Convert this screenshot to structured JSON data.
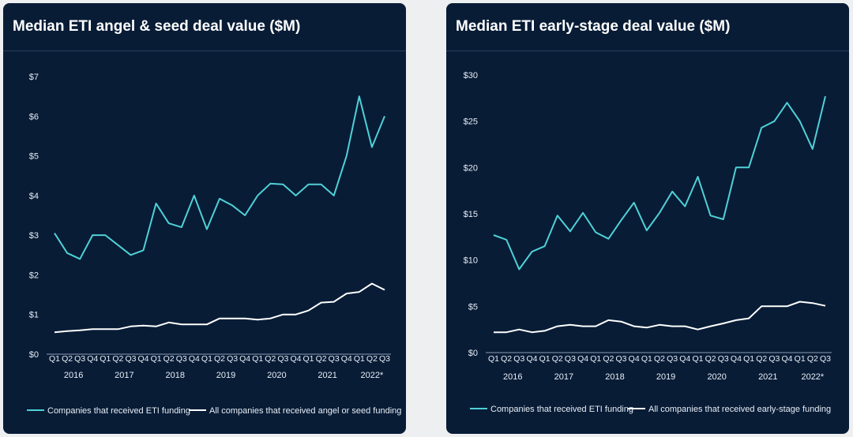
{
  "colors": {
    "background": "#081c36",
    "eti_series": "#4fd1d6",
    "all_series": "#ffffff",
    "axis": "#8b9bb0"
  },
  "chart_data": [
    {
      "type": "line",
      "title": "Median ETI angel & seed deal value ($M)",
      "x": [
        "Q1",
        "Q2",
        "Q3",
        "Q4",
        "Q1",
        "Q2",
        "Q3",
        "Q4",
        "Q1",
        "Q2",
        "Q3",
        "Q4",
        "Q1",
        "Q2",
        "Q3",
        "Q4",
        "Q1",
        "Q2",
        "Q3",
        "Q4",
        "Q1",
        "Q2",
        "Q3",
        "Q4",
        "Q1",
        "Q2",
        "Q3"
      ],
      "year_labels": [
        "2016",
        "2017",
        "2018",
        "2019",
        "2020",
        "2021",
        "2022*"
      ],
      "y_ticks": [
        "$0",
        "$1",
        "$2",
        "$3",
        "$4",
        "$5",
        "$6",
        "$7"
      ],
      "ylim": [
        0,
        7
      ],
      "legend_position": "bottom",
      "series": [
        {
          "name": "Companies that received ETI funding",
          "color_key": "eti_series",
          "values": [
            3.05,
            2.55,
            2.4,
            3.0,
            3.0,
            2.75,
            2.5,
            2.62,
            3.8,
            3.3,
            3.2,
            4.0,
            3.15,
            3.92,
            3.75,
            3.5,
            4.0,
            4.3,
            4.28,
            4.0,
            4.28,
            4.28,
            4.0,
            5.0,
            6.5,
            5.22,
            6.0
          ]
        },
        {
          "name": "All companies that received angel or seed funding",
          "color_key": "all_series",
          "values": [
            0.55,
            0.58,
            0.6,
            0.63,
            0.63,
            0.63,
            0.7,
            0.72,
            0.7,
            0.8,
            0.75,
            0.75,
            0.75,
            0.9,
            0.9,
            0.9,
            0.87,
            0.9,
            1.0,
            1.0,
            1.1,
            1.3,
            1.32,
            1.53,
            1.57,
            1.78,
            1.62
          ]
        }
      ]
    },
    {
      "type": "line",
      "title": "Median ETI early-stage deal value ($M)",
      "x": [
        "Q1",
        "Q2",
        "Q3",
        "Q4",
        "Q1",
        "Q2",
        "Q3",
        "Q4",
        "Q1",
        "Q2",
        "Q3",
        "Q4",
        "Q1",
        "Q2",
        "Q3",
        "Q4",
        "Q1",
        "Q2",
        "Q3",
        "Q4",
        "Q1",
        "Q2",
        "Q3",
        "Q4",
        "Q1",
        "Q2",
        "Q3"
      ],
      "year_labels": [
        "2016",
        "2017",
        "2018",
        "2019",
        "2020",
        "2021",
        "2022*"
      ],
      "y_ticks": [
        "$0",
        "$5",
        "$10",
        "$15",
        "$20",
        "$25",
        "$30"
      ],
      "ylim": [
        0,
        30
      ],
      "legend_position": "bottom",
      "series": [
        {
          "name": "Companies that received ETI funding",
          "color_key": "eti_series",
          "values": [
            12.7,
            12.2,
            9.0,
            10.9,
            11.5,
            14.8,
            13.1,
            15.1,
            13.0,
            12.3,
            14.3,
            16.2,
            13.2,
            15.1,
            17.4,
            15.8,
            19.0,
            14.8,
            14.4,
            20.0,
            20.0,
            24.3,
            25.0,
            27.0,
            25.0,
            22.0,
            27.7
          ]
        },
        {
          "name": "All companies that received early-stage funding",
          "color_key": "all_series",
          "values": [
            2.2,
            2.2,
            2.5,
            2.2,
            2.35,
            2.85,
            3.0,
            2.85,
            2.85,
            3.5,
            3.35,
            2.85,
            2.7,
            3.0,
            2.85,
            2.85,
            2.5,
            2.85,
            3.15,
            3.5,
            3.7,
            5.0,
            5.0,
            5.0,
            5.5,
            5.35,
            5.05
          ]
        }
      ]
    }
  ]
}
